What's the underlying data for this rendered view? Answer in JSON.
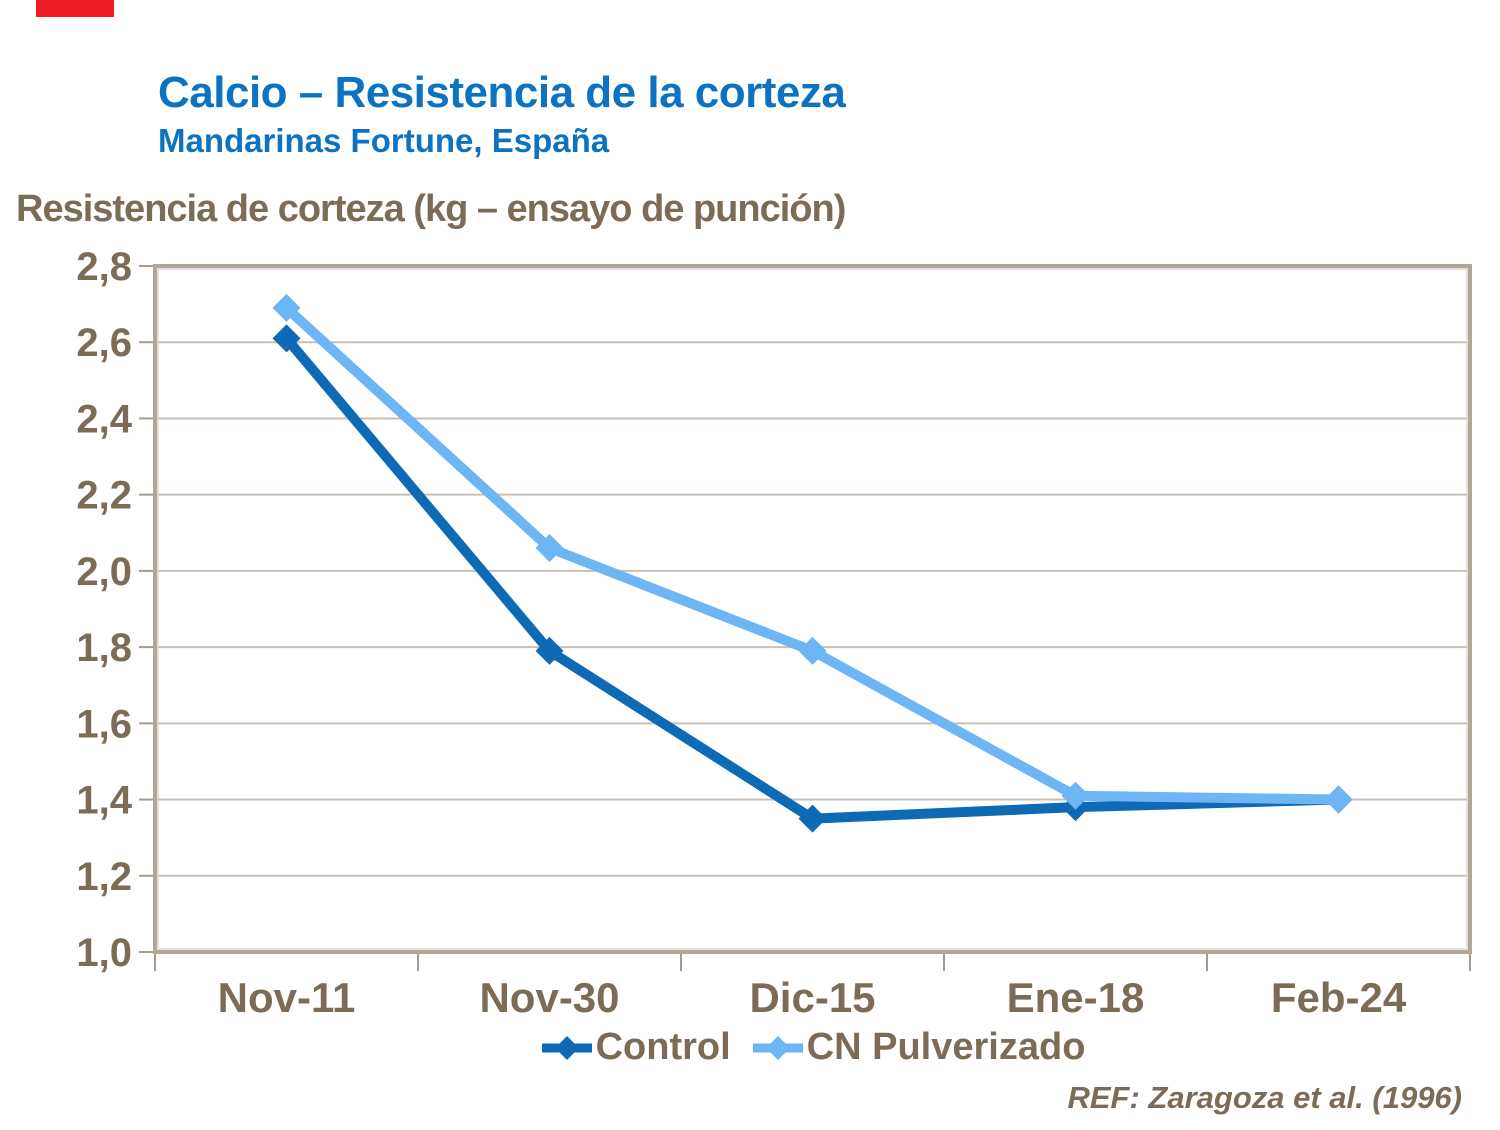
{
  "slide": {
    "accent_bar_color": "#ee1c25",
    "title": "Calcio – Resistencia de la corteza",
    "subtitle": "Mandarinas Fortune, España",
    "title_color": "#0c73c2",
    "text_color": "#7c6c57",
    "reference": "REF: Zaragoza et al. (1996)"
  },
  "chart_data": {
    "type": "line",
    "title": "Resistencia de corteza (kg – ensayo de punción)",
    "categories": [
      "Nov-11",
      "Nov-30",
      "Dic-15",
      "Ene-18",
      "Feb-24"
    ],
    "series": [
      {
        "name": "Control",
        "color": "#0e6ab5",
        "values": [
          2.61,
          1.79,
          1.35,
          1.38,
          1.4
        ]
      },
      {
        "name": "CN Pulverizado",
        "color": "#6db5f3",
        "values": [
          2.69,
          2.06,
          1.79,
          1.41,
          1.4
        ]
      }
    ],
    "xlabel": "",
    "ylabel": "",
    "ylim": [
      1.0,
      2.8
    ],
    "ytick_step": 0.2,
    "ytick_labels": [
      "1,0",
      "1,2",
      "1,4",
      "1,6",
      "1,8",
      "2,0",
      "2,2",
      "2,4",
      "2,6",
      "2,8"
    ],
    "decimal_separator": ",",
    "grid": true,
    "legend_position": "bottom",
    "marker_shape": "diamond",
    "colors": {
      "gridline": "#c9c0b3",
      "border": "#b2a698",
      "border_inner": "#ded7cb",
      "tick": "#a79b8c",
      "axis_text": "#7c6c57"
    }
  }
}
